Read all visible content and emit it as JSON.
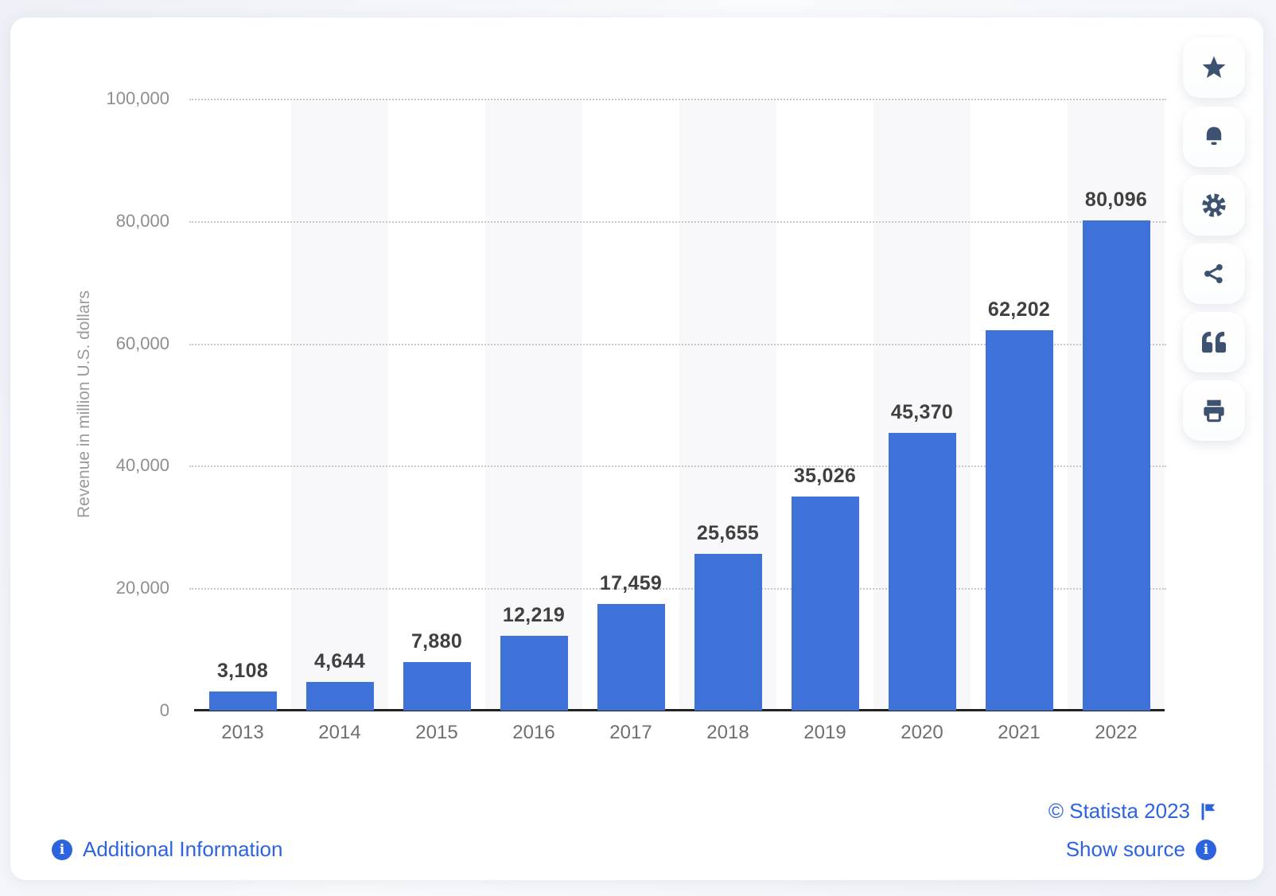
{
  "chart_data": {
    "type": "bar",
    "categories": [
      "2013",
      "2014",
      "2015",
      "2016",
      "2017",
      "2018",
      "2019",
      "2020",
      "2021",
      "2022"
    ],
    "values": [
      3108,
      4644,
      7880,
      12219,
      17459,
      25655,
      35026,
      45370,
      62202,
      80096
    ],
    "value_labels": [
      "3,108",
      "4,644",
      "7,880",
      "12,219",
      "17,459",
      "25,655",
      "35,026",
      "45,370",
      "62,202",
      "80,096"
    ],
    "title": "",
    "xlabel": "",
    "ylabel": "Revenue in million U.S. dollars",
    "ylim": [
      0,
      100000
    ],
    "yticks": [
      {
        "value": 0,
        "label": "0"
      },
      {
        "value": 20000,
        "label": "20,000"
      },
      {
        "value": 40000,
        "label": "40,000"
      },
      {
        "value": 60000,
        "label": "60,000"
      },
      {
        "value": 80000,
        "label": "80,000"
      },
      {
        "value": 100000,
        "label": "100,000"
      }
    ],
    "grid": "horizontal-dotted",
    "legend": "none",
    "bar_color": "#3e72d8",
    "stripe_color": "#f8f8fa"
  },
  "toolbar": {
    "buttons": [
      {
        "name": "favorite-button",
        "icon": "star-icon"
      },
      {
        "name": "alert-button",
        "icon": "bell-icon"
      },
      {
        "name": "settings-button",
        "icon": "gear-icon"
      },
      {
        "name": "share-button",
        "icon": "share-icon"
      },
      {
        "name": "cite-button",
        "icon": "quote-icon"
      },
      {
        "name": "print-button",
        "icon": "print-icon"
      }
    ],
    "icon_color": "#3d5270"
  },
  "footer": {
    "additional_information": "Additional Information",
    "copyright": "© Statista 2023",
    "show_source": "Show source",
    "link_color": "#2e63e0"
  }
}
